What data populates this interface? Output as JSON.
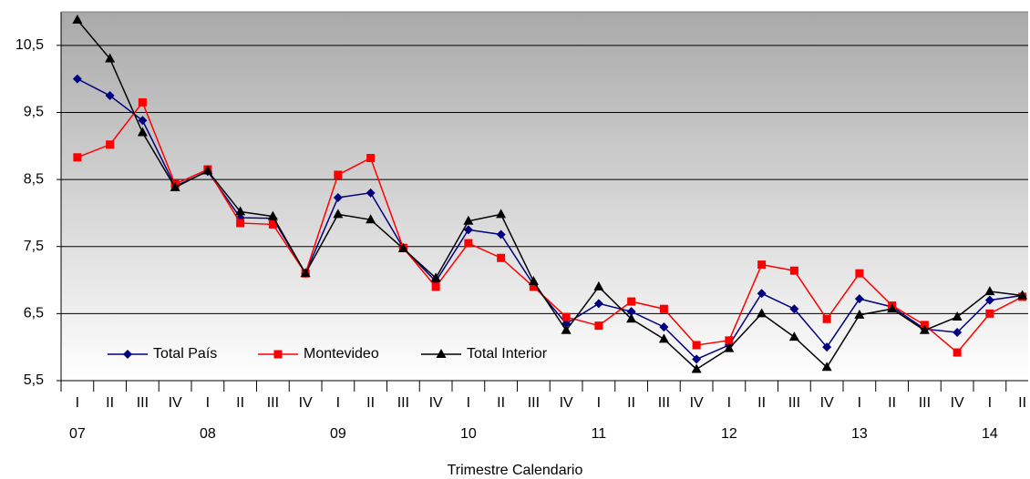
{
  "chart_data": {
    "type": "line",
    "x_label": "Trimestre Calendario",
    "categories": [
      "I",
      "II",
      "III",
      "IV",
      "I",
      "II",
      "III",
      "IV",
      "I",
      "II",
      "III",
      "IV",
      "I",
      "II",
      "III",
      "IV",
      "I",
      "II",
      "III",
      "IV",
      "I",
      "II",
      "III",
      "IV",
      "I",
      "II",
      "III",
      "IV",
      "I",
      "II"
    ],
    "category_years": [
      "07",
      null,
      null,
      null,
      "08",
      null,
      null,
      null,
      "09",
      null,
      null,
      null,
      "10",
      null,
      null,
      null,
      "11",
      null,
      null,
      null,
      "12",
      null,
      null,
      null,
      "13",
      null,
      null,
      null,
      "14",
      null
    ],
    "ylim": [
      5.5,
      11
    ],
    "yticks": [
      {
        "value": 5.5,
        "label": "5,5"
      },
      {
        "value": 6.5,
        "label": "6,5"
      },
      {
        "value": 7.5,
        "label": "7,5"
      },
      {
        "value": 8.5,
        "label": "8,5"
      },
      {
        "value": 9.5,
        "label": "9,5"
      },
      {
        "value": 10.5,
        "label": "10,5"
      }
    ],
    "grid": true,
    "legend": "lower left",
    "series": [
      {
        "name": "Total País",
        "color": "#000080",
        "marker": "diamond",
        "values": [
          10.0,
          9.75,
          9.38,
          8.4,
          8.62,
          7.93,
          7.92,
          7.1,
          8.23,
          8.3,
          7.48,
          6.98,
          7.75,
          7.68,
          6.93,
          6.35,
          6.65,
          6.53,
          6.3,
          5.82,
          6.03,
          6.8,
          6.57,
          6.0,
          6.72,
          6.6,
          6.27,
          6.22,
          6.7,
          6.77
        ]
      },
      {
        "name": "Montevideo",
        "color": "#ff0000",
        "marker": "square",
        "values": [
          8.83,
          9.02,
          9.65,
          8.43,
          8.65,
          7.85,
          7.83,
          7.1,
          8.57,
          8.82,
          7.48,
          6.9,
          7.55,
          7.33,
          6.9,
          6.45,
          6.32,
          6.68,
          6.57,
          6.03,
          6.1,
          7.23,
          7.14,
          6.42,
          7.1,
          6.62,
          6.33,
          5.92,
          6.5,
          6.75
        ]
      },
      {
        "name": "Total Interior",
        "color": "#000000",
        "marker": "triangle",
        "values": [
          10.88,
          10.3,
          9.2,
          8.38,
          8.63,
          8.02,
          7.95,
          7.1,
          7.98,
          7.9,
          7.47,
          7.03,
          7.88,
          7.98,
          6.98,
          6.25,
          6.9,
          6.42,
          6.12,
          5.67,
          5.98,
          6.5,
          6.15,
          5.7,
          6.48,
          6.57,
          6.25,
          6.45,
          6.83,
          6.77
        ]
      }
    ]
  }
}
